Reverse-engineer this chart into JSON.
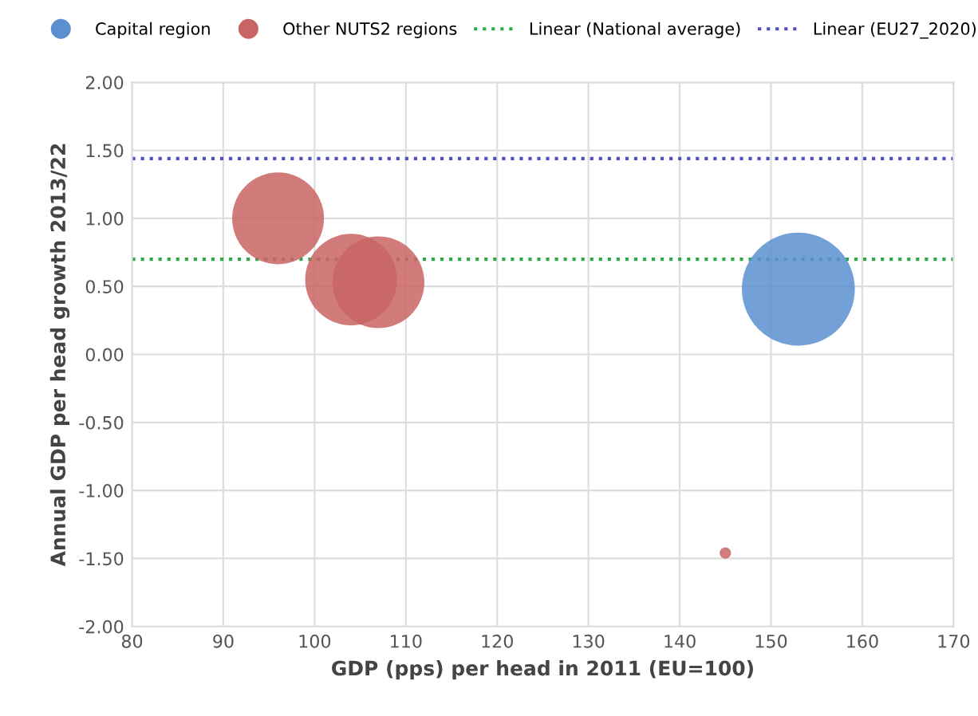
{
  "chart_data": {
    "type": "bubble",
    "xlabel": "GDP (pps) per head in 2011 (EU=100)",
    "ylabel": "Annual GDP per head growth 2013/22",
    "series": [
      {
        "name": "Capital region",
        "color": "#5b8fcf",
        "x": [
          153
        ],
        "values": [
          0.48
        ],
        "sizes": [
          1
        ]
      },
      {
        "name": "Other NUTS2 regions",
        "color": "#c96464",
        "x": [
          96,
          104,
          107,
          145
        ],
        "values": [
          1.0,
          0.55,
          0.53,
          -1.46
        ],
        "sizes": [
          0.66,
          0.66,
          0.66,
          0.01
        ]
      }
    ],
    "ref_lines": [
      {
        "axis": "y",
        "value": 0.7,
        "label": "Linear (National average)",
        "color": "#2eaa4a",
        "line_style": "dotted"
      },
      {
        "axis": "y",
        "value": 1.44,
        "label": "Linear (EU27_2020)",
        "color": "#5050c0",
        "line_style": "dotted"
      }
    ],
    "xlim": [
      80,
      170
    ],
    "xticks": [
      80,
      90,
      100,
      110,
      120,
      130,
      140,
      150,
      160,
      170
    ],
    "ylim": [
      -2.0,
      2.0
    ],
    "yticks": [
      {
        "value": -2.0,
        "label": "-2.00"
      },
      {
        "value": -1.5,
        "label": "-1.50"
      },
      {
        "value": -1.0,
        "label": "-1.00"
      },
      {
        "value": -0.5,
        "label": "-0.50"
      },
      {
        "value": 0.0,
        "label": "0.00"
      },
      {
        "value": 0.5,
        "label": "0.50"
      },
      {
        "value": 1.0,
        "label": "1.00"
      },
      {
        "value": 1.5,
        "label": "1.50"
      },
      {
        "value": 2.0,
        "label": "2.00"
      }
    ],
    "grid": true,
    "legend": "top"
  }
}
